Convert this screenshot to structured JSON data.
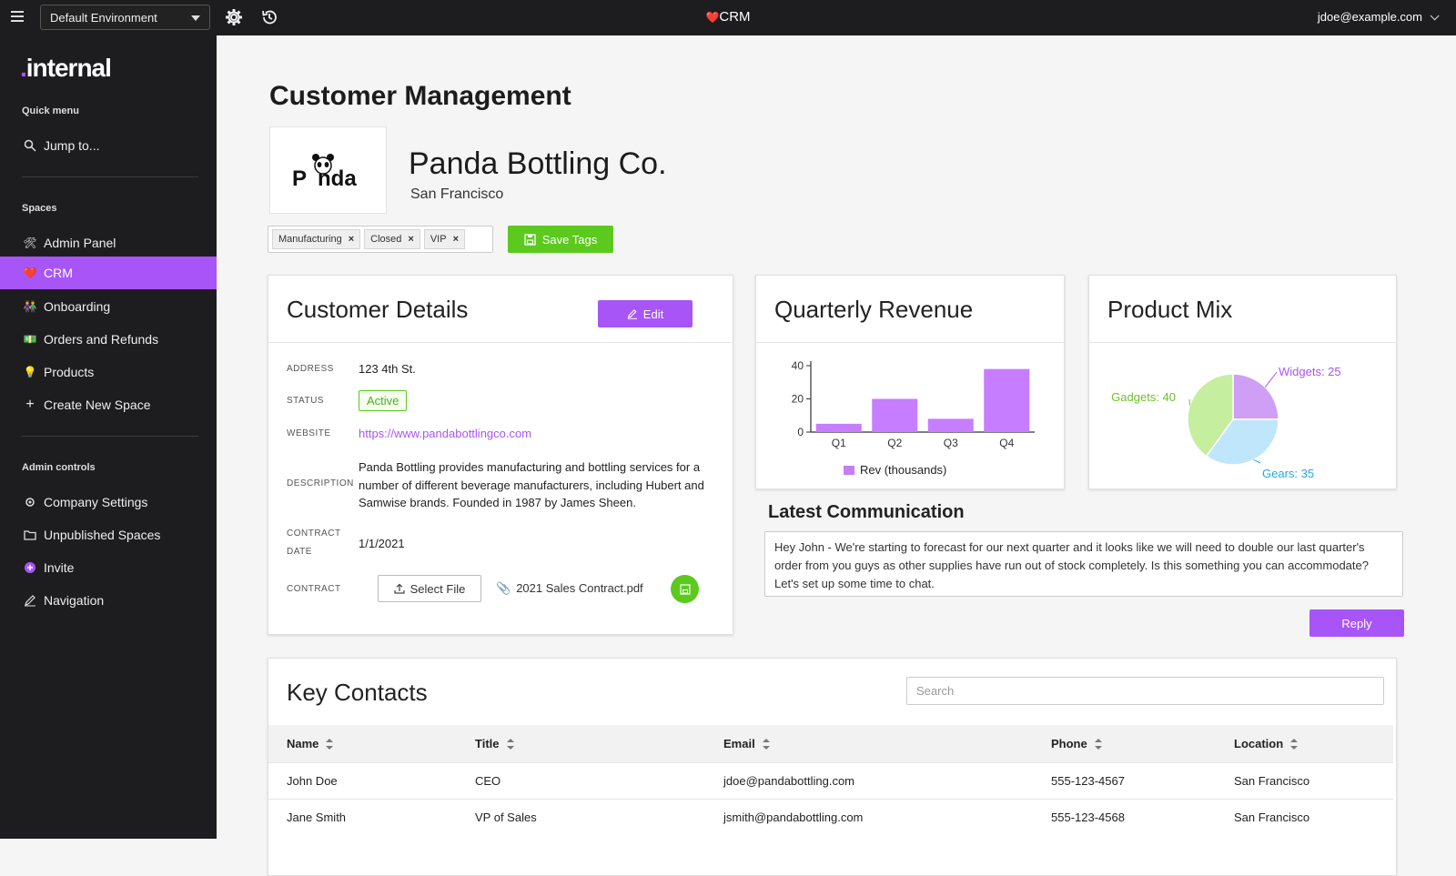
{
  "topbar": {
    "environment": "Default Environment",
    "app_icon": "❤️",
    "app_title": "CRM",
    "user_email": "jdoe@example.com"
  },
  "sidebar": {
    "logo_dot": ".",
    "logo_text": "internal",
    "quick_menu_label": "Quick menu",
    "jump_to": "Jump to...",
    "spaces_label": "Spaces",
    "spaces": [
      {
        "icon": "🛠",
        "label": "Admin Panel"
      },
      {
        "icon": "❤️",
        "label": "CRM"
      },
      {
        "icon": "👫",
        "label": "Onboarding"
      },
      {
        "icon": "💵",
        "label": "Orders and Refunds"
      },
      {
        "icon": "💡",
        "label": "Products"
      },
      {
        "icon": "+",
        "label": "Create New Space"
      }
    ],
    "admin_label": "Admin controls",
    "admin_items": [
      {
        "icon": "gear-icon",
        "label": "Company Settings"
      },
      {
        "icon": "folder-icon",
        "label": "Unpublished Spaces"
      },
      {
        "icon": "plus-circle-icon",
        "label": "Invite"
      },
      {
        "icon": "pencil-icon",
        "label": "Navigation"
      }
    ]
  },
  "page": {
    "title": "Customer Management",
    "logo_text_a": "P",
    "logo_text_b": "nda",
    "company_name": "Panda Bottling Co.",
    "company_city": "San Francisco",
    "tags": [
      "Manufacturing",
      "Closed",
      "VIP"
    ],
    "tag_remove": "×",
    "save_tags": "Save Tags"
  },
  "details": {
    "title": "Customer Details",
    "edit_label": "Edit",
    "address_label": "ADDRESS",
    "address": "123 4th St.",
    "status_label": "STATUS",
    "status": "Active",
    "website_label": "WEBSITE",
    "website": "https://www.pandabottlingco.com",
    "description_label": "DESCRIPTION",
    "description": "Panda Bottling provides manufacturing and bottling services for a number of different beverage manufacturers, including Hubert and Samwise brands. Founded in 1987 by James Sheen.",
    "contract_date_label_1": "CONTRACT",
    "contract_date_label_2": "DATE",
    "contract_date": "1/1/2021",
    "contract_label": "CONTRACT",
    "select_file": "Select File",
    "contract_file": "2021 Sales Contract.pdf"
  },
  "revenue": {
    "title": "Quarterly Revenue",
    "legend": "Rev (thousands)"
  },
  "mix": {
    "title": "Product Mix",
    "labels": [
      "Widgets: 25",
      "Gears: 35",
      "Gadgets: 40"
    ]
  },
  "chart_data": [
    {
      "type": "bar",
      "categories": [
        "Q1",
        "Q2",
        "Q3",
        "Q4"
      ],
      "series": [
        {
          "name": "Rev (thousands)",
          "values": [
            5,
            20,
            8,
            38
          ]
        }
      ],
      "ylim": [
        0,
        40
      ],
      "yticks": [
        0,
        20,
        40
      ],
      "color": "#c77dff"
    },
    {
      "type": "pie",
      "categories": [
        "Widgets",
        "Gears",
        "Gadgets"
      ],
      "values": [
        25,
        35,
        40
      ],
      "colors": [
        "#cf9ef5",
        "#bfe6fb",
        "#c5ee9f"
      ],
      "label_colors": [
        "#a855f7",
        "#2aa7e0",
        "#6ec12a"
      ]
    }
  ],
  "communication": {
    "title": "Latest Communication",
    "message": "Hey John - We're starting to forecast for our next quarter and it looks like we will need to double our last quarter's order from you guys as other supplies have run out of stock completely. Is this something you can accommodate? Let's set up some time to chat.",
    "reply": "Reply"
  },
  "contacts": {
    "title": "Key Contacts",
    "search_placeholder": "Search",
    "columns": [
      "Name",
      "Title",
      "Email",
      "Phone",
      "Location"
    ],
    "rows": [
      [
        "John Doe",
        "CEO",
        "jdoe@pandabottling.com",
        "555-123-4567",
        "San Francisco"
      ],
      [
        "Jane Smith",
        "VP of Sales",
        "jsmith@pandabottling.com",
        "555-123-4568",
        "San Francisco"
      ]
    ]
  },
  "colors": {
    "accent": "#a855f7",
    "success": "#5bc91d",
    "dark": "#1d1d1f"
  }
}
